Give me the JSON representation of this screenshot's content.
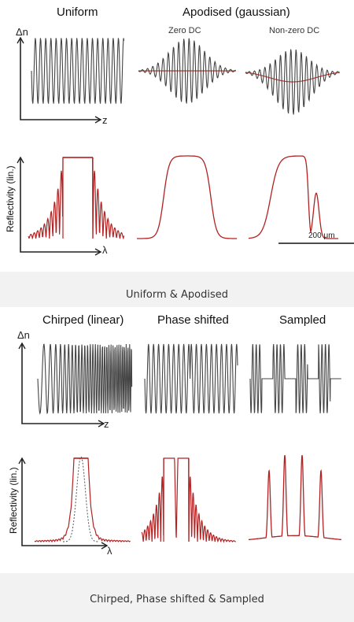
{
  "figure1": {
    "titles": {
      "uniform": "Uniform",
      "apodised": "Apodised (gaussian)",
      "zero_dc": "Zero DC",
      "nonzero_dc": "Non-zero DC"
    },
    "axis": {
      "delta_n": "Δn",
      "z": "z",
      "lambda": "λ",
      "reflectivity": "Reflectivity (lin.)"
    },
    "scale_bar": "200 μm",
    "caption": "Uniform & Apodised"
  },
  "figure2": {
    "titles": {
      "chirped": "Chirped (linear)",
      "phase_shifted": "Phase shifted",
      "sampled": "Sampled"
    },
    "axis": {
      "delta_n": "Δn",
      "z": "z",
      "lambda": "λ",
      "reflectivity": "Reflectivity (lin.)"
    },
    "caption": "Chirped, Phase shifted & Sampled"
  },
  "colors": {
    "index_trace": "#444444",
    "spectrum": "#b22222",
    "dc_line": "#c0392b",
    "caption_bg": "#f2f2f2"
  }
}
